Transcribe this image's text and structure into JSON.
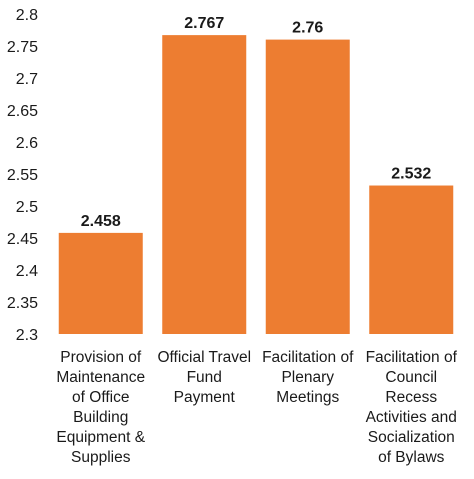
{
  "chart_data": {
    "type": "bar",
    "title": "",
    "xlabel": "",
    "ylabel": "",
    "categories": [
      [
        "Provision of",
        "Maintenance",
        "of Office",
        "Building",
        "Equipment &",
        "Supplies"
      ],
      [
        "Official Travel",
        "Fund",
        "Payment"
      ],
      [
        "Facilitation of",
        "Plenary",
        "Meetings"
      ],
      [
        "Facilitation of",
        "Council",
        "Recess",
        "Activities and",
        "Socialization",
        "of Bylaws"
      ]
    ],
    "values": [
      2.458,
      2.767,
      2.76,
      2.532
    ],
    "data_labels": [
      "2.458",
      "2.767",
      "2.76",
      "2.532"
    ],
    "ylim": [
      2.3,
      2.8
    ],
    "yticks": [
      "2.3",
      "2.35",
      "2.4",
      "2.45",
      "2.5",
      "2.55",
      "2.6",
      "2.65",
      "2.7",
      "2.75",
      "2.8"
    ],
    "grid": false,
    "legend": "none",
    "bar_color": "#ED7D31"
  }
}
